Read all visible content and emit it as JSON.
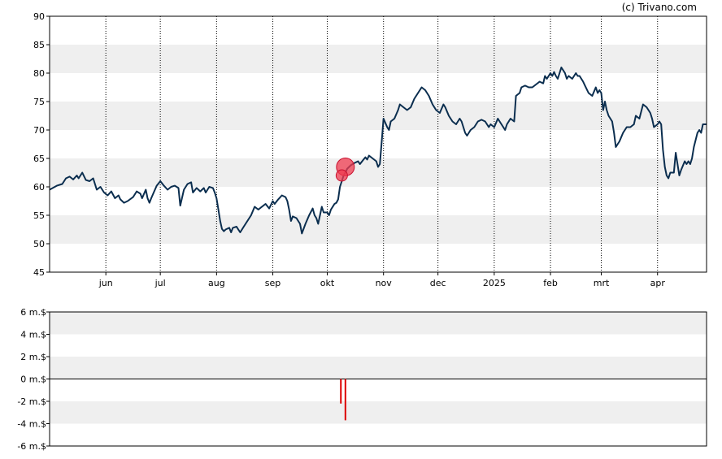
{
  "credit": "(c) Trivano.com",
  "colors": {
    "price_line": "#0b2e4f",
    "band": "#efefef",
    "marker": "#ef3b4f",
    "volume_bar": "#dd0000",
    "frame": "#000000",
    "grid": "#000000"
  },
  "chart_data": [
    {
      "type": "line",
      "title": "",
      "ylim": [
        45,
        90
      ],
      "yticks": [
        45,
        50,
        55,
        60,
        65,
        70,
        75,
        80,
        85,
        90
      ],
      "months": [
        {
          "label": "jun",
          "day": 31
        },
        {
          "label": "jul",
          "day": 61
        },
        {
          "label": "aug",
          "day": 92
        },
        {
          "label": "sep",
          "day": 123
        },
        {
          "label": "okt",
          "day": 153
        },
        {
          "label": "nov",
          "day": 184
        },
        {
          "label": "dec",
          "day": 214
        },
        {
          "label": "2025",
          "day": 245
        },
        {
          "label": "feb",
          "day": 276
        },
        {
          "label": "mrt",
          "day": 304
        },
        {
          "label": "apr",
          "day": 335
        }
      ],
      "x_start_day": 0,
      "x_end_day": 362,
      "series": [
        {
          "points": [
            [
              0,
              59.5
            ],
            [
              4,
              60.2
            ],
            [
              7,
              60.5
            ],
            [
              9,
              61.5
            ],
            [
              11,
              61.8
            ],
            [
              13,
              61.3
            ],
            [
              15,
              62.0
            ],
            [
              16,
              61.5
            ],
            [
              18,
              62.5
            ],
            [
              20,
              61.2
            ],
            [
              22,
              61.0
            ],
            [
              24,
              61.5
            ],
            [
              25,
              60.5
            ],
            [
              26,
              59.5
            ],
            [
              28,
              60.0
            ],
            [
              30,
              59.0
            ],
            [
              32,
              58.5
            ],
            [
              34,
              59.2
            ],
            [
              36,
              58.0
            ],
            [
              38,
              58.5
            ],
            [
              39,
              57.8
            ],
            [
              41,
              57.2
            ],
            [
              43,
              57.5
            ],
            [
              46,
              58.2
            ],
            [
              48,
              59.2
            ],
            [
              50,
              58.8
            ],
            [
              51,
              58.0
            ],
            [
              53,
              59.5
            ],
            [
              54,
              58.0
            ],
            [
              55,
              57.2
            ],
            [
              56,
              58.0
            ],
            [
              59,
              60.2
            ],
            [
              61,
              61.0
            ],
            [
              63,
              60.2
            ],
            [
              65,
              59.5
            ],
            [
              67,
              60.0
            ],
            [
              69,
              60.2
            ],
            [
              71,
              59.8
            ],
            [
              72,
              56.7
            ],
            [
              74,
              59.5
            ],
            [
              76,
              60.5
            ],
            [
              78,
              60.8
            ],
            [
              79,
              59.0
            ],
            [
              81,
              59.8
            ],
            [
              83,
              59.2
            ],
            [
              85,
              59.8
            ],
            [
              86,
              59.0
            ],
            [
              88,
              60.0
            ],
            [
              90,
              59.8
            ],
            [
              91,
              59.0
            ],
            [
              92,
              58.0
            ],
            [
              93,
              56.0
            ],
            [
              94,
              54.0
            ],
            [
              95,
              52.6
            ],
            [
              96,
              52.2
            ],
            [
              97,
              52.5
            ],
            [
              99,
              52.8
            ],
            [
              100,
              52.0
            ],
            [
              101,
              52.8
            ],
            [
              103,
              53.0
            ],
            [
              104,
              52.5
            ],
            [
              105,
              52.0
            ],
            [
              107,
              53.0
            ],
            [
              109,
              54.0
            ],
            [
              111,
              55.0
            ],
            [
              113,
              56.5
            ],
            [
              115,
              56.0
            ],
            [
              117,
              56.5
            ],
            [
              119,
              57.0
            ],
            [
              121,
              56.2
            ],
            [
              123,
              57.5
            ],
            [
              124,
              57.0
            ],
            [
              126,
              57.8
            ],
            [
              128,
              58.5
            ],
            [
              130,
              58.2
            ],
            [
              131,
              57.5
            ],
            [
              132,
              56.0
            ],
            [
              133,
              54.0
            ],
            [
              134,
              54.8
            ],
            [
              136,
              54.5
            ],
            [
              138,
              53.5
            ],
            [
              139,
              51.8
            ],
            [
              141,
              53.5
            ],
            [
              143,
              55.0
            ],
            [
              145,
              56.2
            ],
            [
              146,
              55.0
            ],
            [
              147,
              54.5
            ],
            [
              148,
              53.5
            ],
            [
              150,
              56.5
            ],
            [
              151,
              55.5
            ],
            [
              153,
              55.5
            ],
            [
              154,
              55.0
            ],
            [
              155,
              56.0
            ],
            [
              157,
              57.0
            ],
            [
              158,
              57.2
            ],
            [
              159,
              57.8
            ],
            [
              160,
              60.0
            ],
            [
              161,
              61.0
            ],
            [
              162,
              62.0
            ],
            [
              163,
              62.5
            ],
            [
              164,
              63.2
            ],
            [
              166,
              63.8
            ],
            [
              168,
              64.2
            ],
            [
              170,
              64.5
            ],
            [
              171,
              64.0
            ],
            [
              173,
              64.8
            ],
            [
              174,
              65.2
            ],
            [
              175,
              64.8
            ],
            [
              176,
              65.5
            ],
            [
              178,
              65.0
            ],
            [
              180,
              64.5
            ],
            [
              181,
              63.5
            ],
            [
              182,
              64.0
            ],
            [
              183,
              68.0
            ],
            [
              184,
              72.0
            ],
            [
              186,
              70.5
            ],
            [
              187,
              70.0
            ],
            [
              188,
              71.5
            ],
            [
              190,
              72.0
            ],
            [
              192,
              73.5
            ],
            [
              193,
              74.5
            ],
            [
              195,
              74.0
            ],
            [
              197,
              73.5
            ],
            [
              199,
              74.0
            ],
            [
              201,
              75.5
            ],
            [
              203,
              76.5
            ],
            [
              205,
              77.5
            ],
            [
              207,
              77.0
            ],
            [
              209,
              76.0
            ],
            [
              211,
              74.5
            ],
            [
              213,
              73.5
            ],
            [
              215,
              73.0
            ],
            [
              217,
              74.5
            ],
            [
              218,
              74.0
            ],
            [
              220,
              72.5
            ],
            [
              222,
              71.5
            ],
            [
              224,
              71.0
            ],
            [
              226,
              72.0
            ],
            [
              227,
              71.5
            ],
            [
              229,
              69.5
            ],
            [
              230,
              69.0
            ],
            [
              232,
              70.0
            ],
            [
              234,
              70.5
            ],
            [
              236,
              71.5
            ],
            [
              238,
              71.8
            ],
            [
              240,
              71.5
            ],
            [
              242,
              70.5
            ],
            [
              243,
              71.0
            ],
            [
              245,
              70.5
            ],
            [
              247,
              72.0
            ],
            [
              248,
              71.5
            ],
            [
              250,
              70.5
            ],
            [
              251,
              70.0
            ],
            [
              252,
              71.0
            ],
            [
              254,
              72.0
            ],
            [
              256,
              71.5
            ],
            [
              257,
              76.0
            ],
            [
              259,
              76.5
            ],
            [
              260,
              77.5
            ],
            [
              262,
              77.8
            ],
            [
              264,
              77.5
            ],
            [
              266,
              77.5
            ],
            [
              268,
              78.0
            ],
            [
              270,
              78.5
            ],
            [
              272,
              78.2
            ],
            [
              273,
              79.5
            ],
            [
              274,
              79.0
            ],
            [
              276,
              80.0
            ],
            [
              277,
              79.5
            ],
            [
              278,
              80.2
            ],
            [
              279,
              79.5
            ],
            [
              280,
              79.0
            ],
            [
              282,
              81.0
            ],
            [
              283,
              80.5
            ],
            [
              284,
              80.0
            ],
            [
              285,
              79.0
            ],
            [
              286,
              79.5
            ],
            [
              288,
              79.0
            ],
            [
              290,
              80.0
            ],
            [
              291,
              79.5
            ],
            [
              292,
              79.5
            ],
            [
              294,
              78.5
            ],
            [
              295,
              77.8
            ],
            [
              297,
              76.5
            ],
            [
              299,
              76.0
            ],
            [
              301,
              77.5
            ],
            [
              302,
              76.5
            ],
            [
              303,
              77.0
            ],
            [
              304,
              76.5
            ],
            [
              305,
              73.5
            ],
            [
              306,
              75.0
            ],
            [
              307,
              73.5
            ],
            [
              308,
              72.5
            ],
            [
              310,
              71.5
            ],
            [
              311,
              69.5
            ],
            [
              312,
              67.0
            ],
            [
              314,
              68.0
            ],
            [
              316,
              69.5
            ],
            [
              318,
              70.5
            ],
            [
              320,
              70.5
            ],
            [
              322,
              71.0
            ],
            [
              323,
              72.5
            ],
            [
              325,
              72.0
            ],
            [
              327,
              74.5
            ],
            [
              329,
              74.0
            ],
            [
              331,
              73.0
            ],
            [
              332,
              72.0
            ],
            [
              333,
              70.5
            ],
            [
              335,
              71.0
            ],
            [
              336,
              71.5
            ],
            [
              337,
              71.0
            ],
            [
              338,
              66.5
            ],
            [
              339,
              63.5
            ],
            [
              340,
              62.0
            ],
            [
              341,
              61.5
            ],
            [
              342,
              62.5
            ],
            [
              344,
              62.5
            ],
            [
              345,
              66.0
            ],
            [
              346,
              64.0
            ],
            [
              347,
              62.0
            ],
            [
              348,
              63.0
            ],
            [
              350,
              64.5
            ],
            [
              351,
              64.0
            ],
            [
              352,
              64.5
            ],
            [
              353,
              64.0
            ],
            [
              354,
              65.0
            ],
            [
              355,
              67.0
            ],
            [
              357,
              69.5
            ],
            [
              358,
              70.0
            ],
            [
              359,
              69.5
            ],
            [
              360,
              71.0
            ],
            [
              362,
              71.0
            ]
          ]
        }
      ],
      "markers": [
        {
          "day": 163,
          "value": 63.5,
          "size": "large"
        },
        {
          "day": 161,
          "value": 62.0,
          "size": "small"
        }
      ]
    },
    {
      "type": "bar",
      "title": "",
      "ylim": [
        -6,
        6
      ],
      "unit": "m.$",
      "yticks": [
        6,
        4,
        2,
        0,
        -2,
        -4,
        -6
      ],
      "ytick_labels": [
        "6 m.$",
        "4 m.$",
        "2 m.$",
        "0 m.$",
        "-2 m.$",
        "-4 m.$",
        "-6 m.$"
      ],
      "bars": [
        {
          "day": 160.5,
          "value": -2.2
        },
        {
          "day": 163,
          "value": -3.7
        }
      ]
    }
  ]
}
